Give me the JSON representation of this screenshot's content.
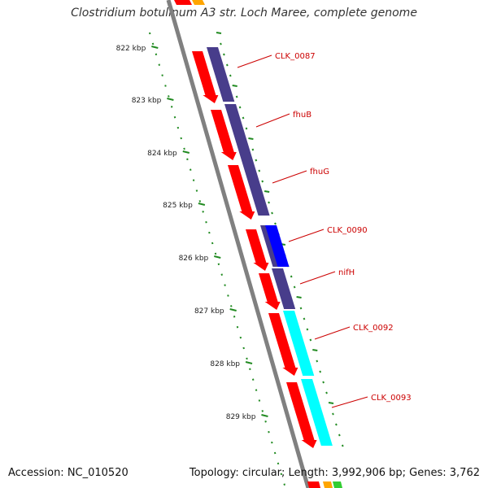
{
  "title": "Clostridium botulinum A3 str. Loch Maree, complete genome",
  "footer": {
    "accession": "Accession: NC_010520",
    "summary": "Topology: circular; Length: 3,992,906 bp; Genes: 3,762"
  },
  "scale": {
    "ticks": [
      "822 kbp",
      "823 kbp",
      "824 kbp",
      "825 kbp",
      "826 kbp",
      "827 kbp",
      "828 kbp",
      "829 kbp"
    ]
  },
  "genes": [
    "CLK_0087",
    "fhuB",
    "fhuG",
    "CLK_0090",
    "nifH",
    "CLK_0092",
    "CLK_0093"
  ],
  "colors": {
    "cds": "#ff0000",
    "cog_purple": "#483d8b",
    "cog_blue": "#0000ff",
    "cog_cyan": "#00ffff",
    "label": "#cc0000",
    "tick": "#228b22",
    "backbone": "#808080"
  }
}
